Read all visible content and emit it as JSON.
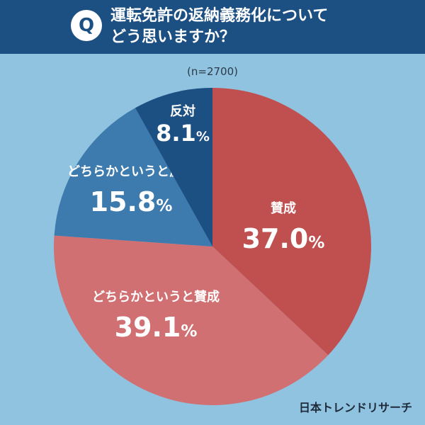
{
  "header": {
    "badge": "Q",
    "question_line1": "運転免許の返納義務化について",
    "question_line2": "どう思いますか？"
  },
  "sample_note": "(n=2700)",
  "brand": "日本トレンドリサーチ",
  "chart_data": {
    "type": "pie",
    "title": "運転免許の返納義務化についてどう思いますか？",
    "n": 2700,
    "slices": [
      {
        "label": "賛成",
        "value": 37.0,
        "display": "37.0",
        "color": "#c0504f"
      },
      {
        "label": "どちらかというと賛成",
        "value": 39.1,
        "display": "39.1",
        "color": "#d17072"
      },
      {
        "label": "どちらかというと反対",
        "value": 15.8,
        "display": "15.8",
        "color": "#3d7aad"
      },
      {
        "label": "反対",
        "value": 8.1,
        "display": "8.1",
        "color": "#1c4f82"
      }
    ],
    "unit": "%",
    "start": "12 o'clock",
    "direction": "clockwise"
  }
}
